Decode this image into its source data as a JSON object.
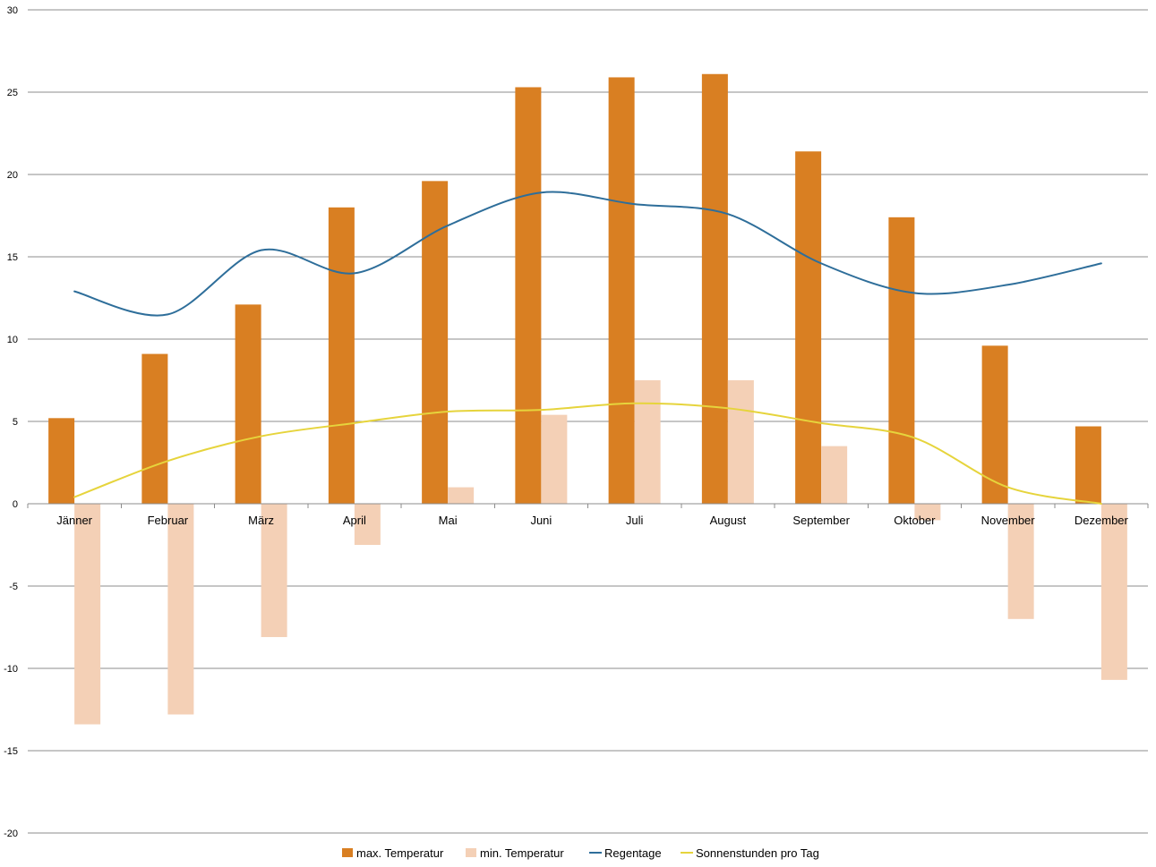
{
  "chart_data": {
    "type": "bar",
    "categories": [
      "Jänner",
      "Februar",
      "März",
      "April",
      "Mai",
      "Juni",
      "Juli",
      "August",
      "September",
      "Oktober",
      "November",
      "Dezember"
    ],
    "series": [
      {
        "name": "max. Temperatur",
        "kind": "bar",
        "color": "#D97F22",
        "values": [
          5.2,
          9.1,
          12.1,
          18.0,
          19.6,
          25.3,
          25.9,
          26.1,
          21.4,
          17.4,
          9.6,
          4.7
        ]
      },
      {
        "name": "min. Temperatur",
        "kind": "bar",
        "color": "#F4D0B6",
        "values": [
          -13.4,
          -12.8,
          -8.1,
          -2.5,
          1.0,
          5.4,
          7.5,
          7.5,
          3.5,
          -1.0,
          -7.0,
          -10.7
        ]
      },
      {
        "name": "Regentage",
        "kind": "line",
        "color": "#2E6E9A",
        "values": [
          12.9,
          11.5,
          15.4,
          14.0,
          16.9,
          18.9,
          18.2,
          17.6,
          14.6,
          12.8,
          13.3,
          14.6
        ]
      },
      {
        "name": "Sonnenstunden pro Tag",
        "kind": "line",
        "color": "#E6D43C",
        "values": [
          0.4,
          2.6,
          4.1,
          4.9,
          5.6,
          5.7,
          6.1,
          5.8,
          4.9,
          4.0,
          1.0,
          0.0
        ]
      }
    ],
    "yticks": [
      30,
      25,
      20,
      15,
      10,
      5,
      0,
      -5,
      -10,
      -15,
      -20
    ],
    "ylim": [
      -20,
      30
    ],
    "grid": true,
    "gridColor": "#8C8C8C",
    "legend_position": "bottom"
  }
}
